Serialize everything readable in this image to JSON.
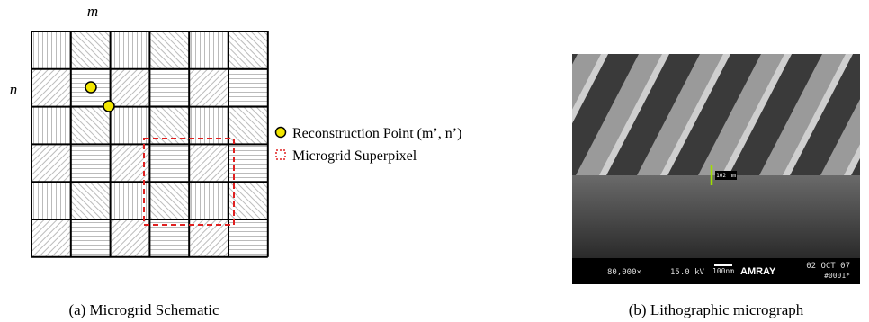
{
  "panel_a": {
    "col_label": "m",
    "row_label": "n",
    "legend": [
      "Reconstruction Point (m’, n’)",
      "Microgrid Superpixel"
    ],
    "caption": "(a) Microgrid Schematic"
  },
  "panel_b": {
    "scale_label": "102 nm",
    "magnification": "80,000×",
    "voltage": "15.0 kV",
    "bar_label": "100nm",
    "brand": "AMRAY",
    "date": "02 OCT 07",
    "id": "#0001*",
    "caption": "(b) Lithographic micrograph"
  }
}
